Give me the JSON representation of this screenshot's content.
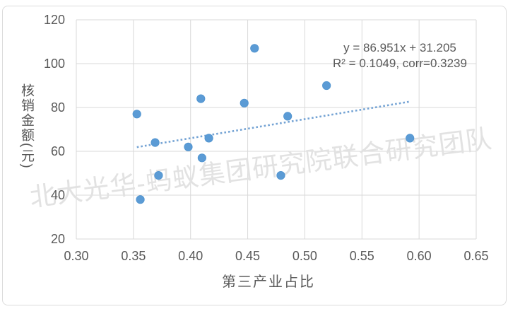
{
  "colors": {
    "marker": "#5B9BD5",
    "marker_edge": "#4f93cf",
    "trendline": "#74A3D4",
    "gridline": "#D9D9D9",
    "text": "#595959",
    "watermark": "#E2E2E2",
    "background": "#FFFFFF",
    "border": "#DCDCDC"
  },
  "chart_data": {
    "type": "scatter",
    "title": "",
    "xlabel": "第三产业占比",
    "ylabel": "核销金额(元)",
    "xlim": [
      0.3,
      0.65
    ],
    "ylim": [
      20,
      120
    ],
    "x_ticks": [
      "0.30",
      "0.35",
      "0.40",
      "0.45",
      "0.50",
      "0.55",
      "0.60",
      "0.65"
    ],
    "y_ticks": [
      "20",
      "40",
      "60",
      "80",
      "100",
      "120"
    ],
    "grid": true,
    "legend": "none",
    "points": [
      {
        "x": 0.353,
        "y": 77
      },
      {
        "x": 0.356,
        "y": 38
      },
      {
        "x": 0.369,
        "y": 64
      },
      {
        "x": 0.372,
        "y": 49
      },
      {
        "x": 0.398,
        "y": 62
      },
      {
        "x": 0.409,
        "y": 84
      },
      {
        "x": 0.41,
        "y": 57
      },
      {
        "x": 0.416,
        "y": 66
      },
      {
        "x": 0.447,
        "y": 82
      },
      {
        "x": 0.456,
        "y": 107
      },
      {
        "x": 0.479,
        "y": 49
      },
      {
        "x": 0.485,
        "y": 76
      },
      {
        "x": 0.519,
        "y": 90
      },
      {
        "x": 0.592,
        "y": 66
      }
    ],
    "trendline": {
      "slope": 86.951,
      "intercept": 31.205,
      "x_start": 0.353,
      "x_end": 0.592,
      "style": "dotted"
    },
    "annotation": {
      "line1": "y = 86.951x + 31.205",
      "line2": "R² = 0.1049, corr=0.3239"
    },
    "watermark": "北大光华-蚂蚁集团研究院联合研究团队"
  }
}
